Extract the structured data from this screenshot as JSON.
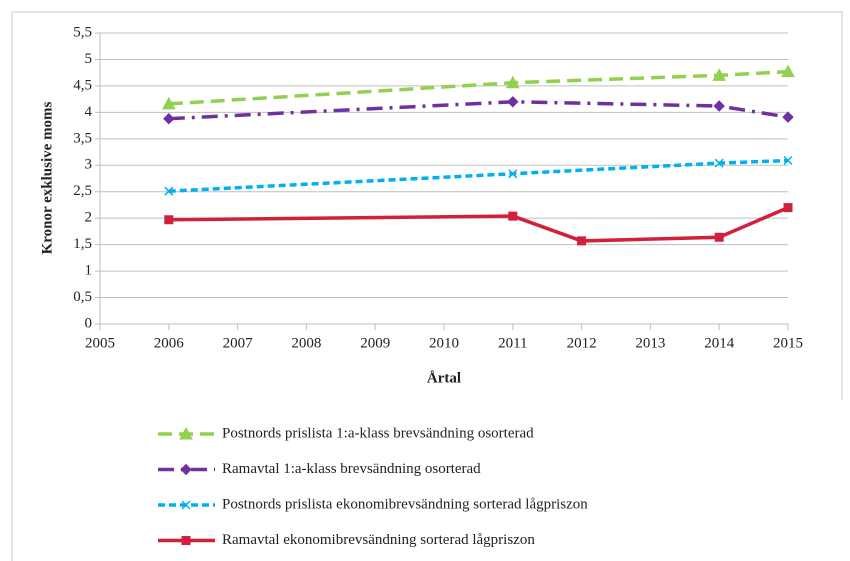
{
  "chart_data": {
    "type": "line",
    "y_label": "Kronor exklusive moms",
    "x_label": "Årtal",
    "xlim": [
      2005,
      2015
    ],
    "xticks": [
      2005,
      2006,
      2007,
      2008,
      2009,
      2010,
      2011,
      2012,
      2013,
      2014,
      2015
    ],
    "ylim": [
      0,
      5.5
    ],
    "yticks": [
      0,
      {
        "value": 0.5,
        "label": "0,5"
      },
      1,
      {
        "value": 1.5,
        "label": "1,5"
      },
      2,
      {
        "value": 2.5,
        "label": "2,5"
      },
      3,
      {
        "value": 3.5,
        "label": "3,5"
      },
      4,
      {
        "value": 4.5,
        "label": "4,5"
      },
      5,
      {
        "value": 5.5,
        "label": "5,5"
      }
    ],
    "grid": true,
    "legend": "bottom",
    "series": [
      {
        "name": "Postnords prislista 1:a-klass brevsändning osorterad",
        "color": "#92d050",
        "line_style": "dashed",
        "marker": "triangle",
        "x": [
          2006,
          2011,
          2014,
          2015
        ],
        "values": [
          4.16,
          4.56,
          4.7,
          4.77
        ]
      },
      {
        "name": "Ramavtal 1:a-klass brevsändning osorterad",
        "color": "#7030a0",
        "line_style": "dashdot",
        "marker": "diamond",
        "x": [
          2006,
          2011,
          2014,
          2015
        ],
        "values": [
          3.88,
          4.2,
          4.12,
          3.91
        ]
      },
      {
        "name": "Postnords prislista ekonomibrevsändning sorterad lågpriszon",
        "color": "#00b0f0",
        "line_style": "dashed-short",
        "marker": "cross",
        "x": [
          2006,
          2011,
          2014,
          2015
        ],
        "values": [
          2.51,
          2.84,
          3.04,
          3.09
        ]
      },
      {
        "name": "Ramavtal ekonomibrevsändning sorterad lågpriszon",
        "color": "#d2203c",
        "line_style": "solid",
        "marker": "square",
        "x": [
          2006,
          2011,
          2012,
          2014,
          2015
        ],
        "values": [
          1.97,
          2.04,
          1.57,
          1.64,
          2.2
        ]
      }
    ]
  }
}
